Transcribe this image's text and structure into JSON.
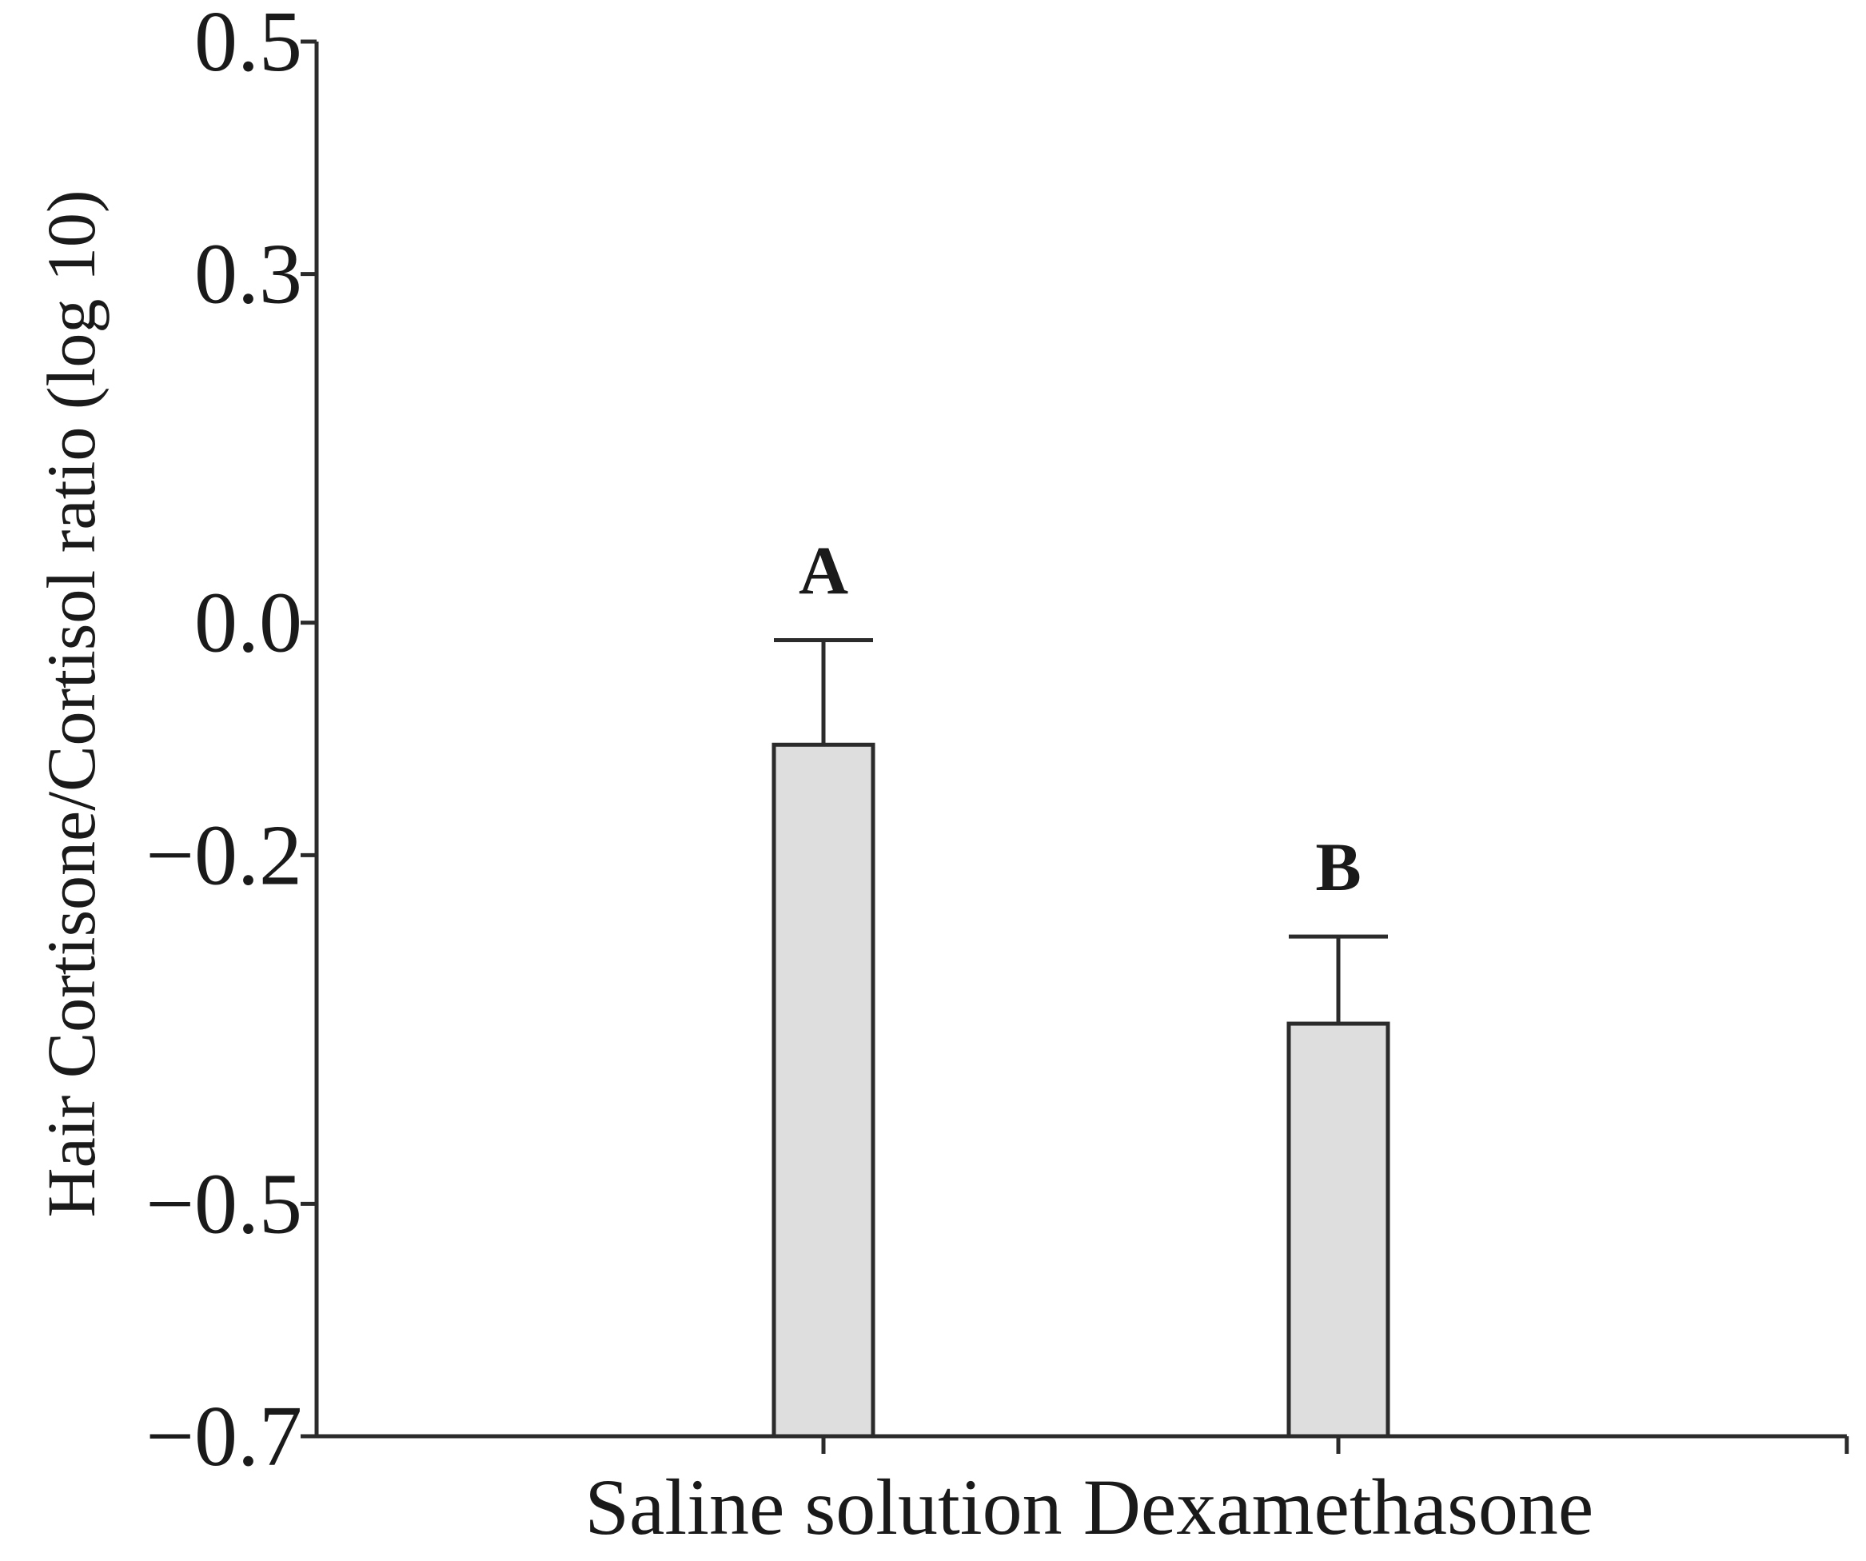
{
  "chart_data": {
    "type": "bar",
    "title": "",
    "xlabel": "",
    "ylabel": "Hair Cortisone/Cortisol ratio (log 10)",
    "categories": [
      "Saline solution",
      "Dexamethasone"
    ],
    "values": [
      -0.105,
      -0.345
    ],
    "error_upper": [
      -0.015,
      -0.27
    ],
    "significance_labels": [
      "A",
      "B"
    ],
    "ylim": [
      -0.7,
      0.5
    ],
    "yticks": [
      0.5,
      0.3,
      0.0,
      -0.2,
      -0.5,
      -0.7
    ],
    "ytick_labels": [
      "0.5",
      "0.3",
      "0.0",
      "−0.2",
      "−0.5",
      "−0.7"
    ],
    "grid": false,
    "legend": "none",
    "bar_color": "#dedede",
    "edge_color": "#2b2b2b"
  }
}
